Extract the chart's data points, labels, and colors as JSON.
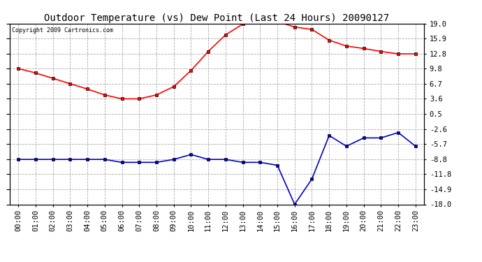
{
  "title": "Outdoor Temperature (vs) Dew Point (Last 24 Hours) 20090127",
  "copyright": "Copyright 2009 Cartronics.com",
  "x_labels": [
    "00:00",
    "01:00",
    "02:00",
    "03:00",
    "04:00",
    "05:00",
    "06:00",
    "07:00",
    "08:00",
    "09:00",
    "10:00",
    "11:00",
    "12:00",
    "13:00",
    "14:00",
    "15:00",
    "16:00",
    "17:00",
    "18:00",
    "19:00",
    "20:00",
    "21:00",
    "22:00",
    "23:00"
  ],
  "temp_data": [
    9.8,
    8.9,
    7.8,
    6.7,
    5.6,
    4.4,
    3.6,
    3.6,
    4.4,
    6.1,
    9.4,
    13.3,
    16.7,
    18.9,
    19.4,
    19.4,
    18.3,
    17.8,
    15.6,
    14.4,
    13.9,
    13.3,
    12.8,
    12.8
  ],
  "dew_data": [
    -8.8,
    -8.8,
    -8.8,
    -8.8,
    -8.8,
    -8.8,
    -9.4,
    -9.4,
    -9.4,
    -8.8,
    -7.8,
    -8.8,
    -8.8,
    -9.4,
    -9.4,
    -10.0,
    -18.0,
    -12.8,
    -3.9,
    -6.1,
    -4.4,
    -4.4,
    -3.3,
    -6.1
  ],
  "y_ticks": [
    19.0,
    15.9,
    12.8,
    9.8,
    6.7,
    3.6,
    0.5,
    -2.6,
    -5.7,
    -8.8,
    -11.8,
    -14.9,
    -18.0
  ],
  "ylim": [
    -18.0,
    19.0
  ],
  "temp_color": "#ff0000",
  "dew_color": "#0000cc",
  "bg_color": "#ffffff",
  "grid_color": "#aaaaaa",
  "title_fontsize": 10,
  "tick_fontsize": 7.5,
  "copyright_fontsize": 6
}
